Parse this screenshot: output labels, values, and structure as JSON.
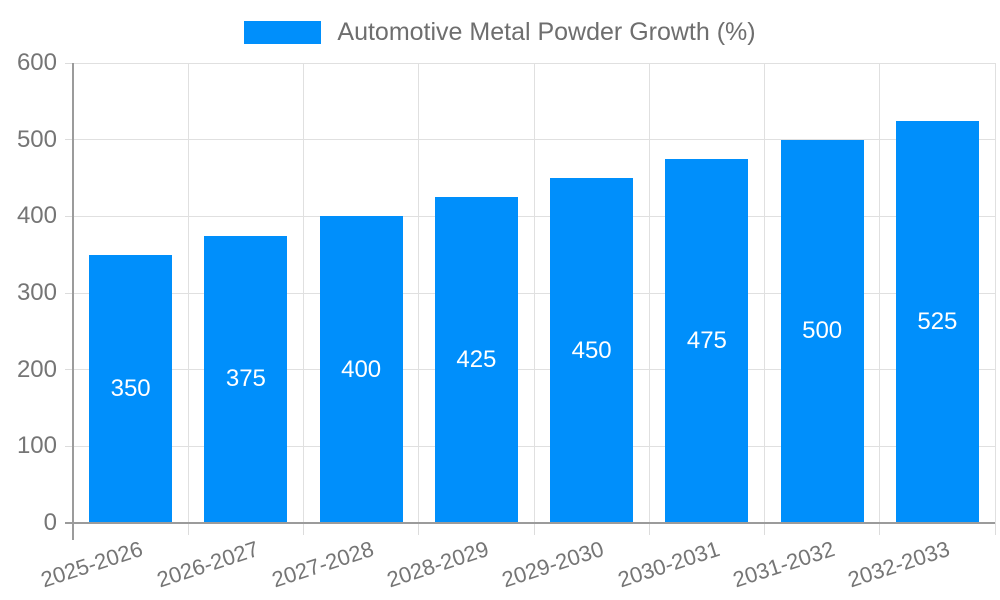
{
  "legend": {
    "label": "Automotive Metal Powder Growth (%)"
  },
  "chart_data": {
    "type": "bar",
    "title": "Automotive Metal Powder Growth (%)",
    "series": [
      {
        "name": "Automotive Metal Powder Growth (%)",
        "values": [
          350,
          375,
          400,
          425,
          450,
          475,
          500,
          525
        ]
      }
    ],
    "categories": [
      "2025-2026",
      "2026-2027",
      "2027-2028",
      "2028-2029",
      "2029-2030",
      "2030-2031",
      "2031-2032",
      "2032-2033"
    ],
    "xlabel": "",
    "ylabel": "",
    "ylim": [
      0,
      600
    ],
    "yticks": [
      0,
      100,
      200,
      300,
      400,
      500,
      600
    ],
    "grid": true,
    "legend_position": "top",
    "x_label_rotation_deg": -18,
    "bar_labels_shown": true,
    "colors": {
      "bar": "#008FFB",
      "bar_label": "#ffffff",
      "axis_label": "#757575",
      "legend_text": "#6e6e6e",
      "gridline": "#e0e0e0",
      "axis_line": "#9b9b9b"
    }
  }
}
